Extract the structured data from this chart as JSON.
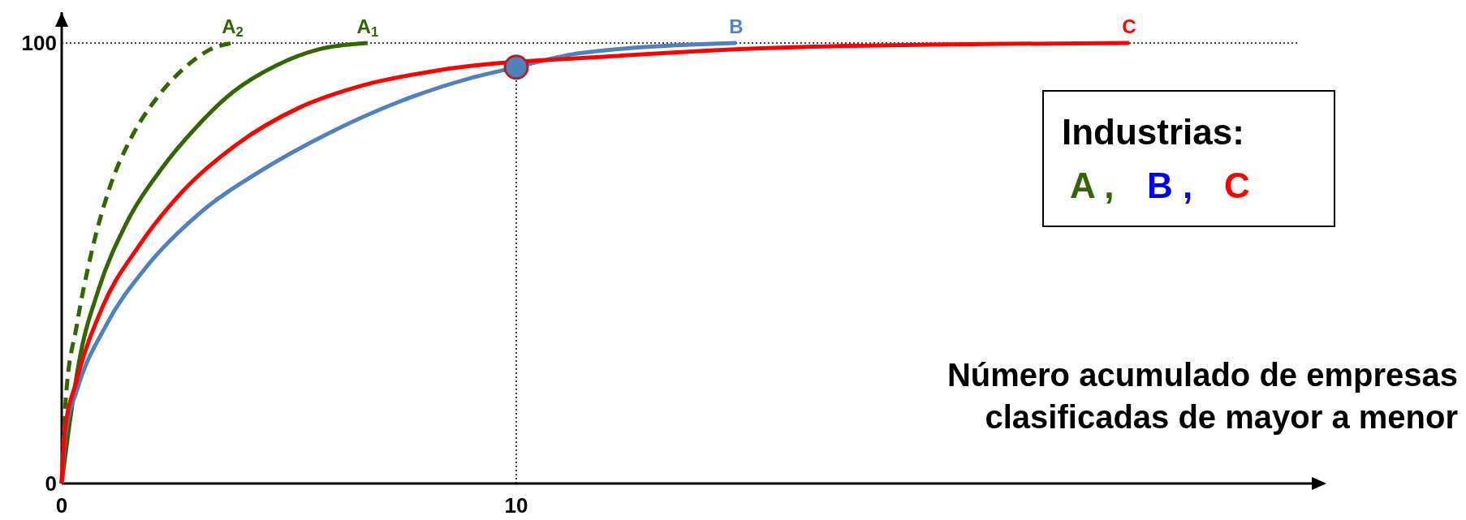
{
  "chart_data": {
    "type": "line",
    "xlabel": "Número acumulado de empresas\nclasificadas de mayor a menor",
    "xlim": [
      0,
      27.5
    ],
    "ylim": [
      0,
      107
    ],
    "xticks": [
      0,
      10
    ],
    "yticks": [
      0,
      100
    ],
    "series": [
      {
        "name": "A$_{2}$",
        "color": "#336600",
        "line_style": "dashed",
        "x": [
          0,
          0.09,
          0.33,
          0.65,
          1.05,
          1.53,
          2.09,
          2.73,
          3.28,
          3.76
        ],
        "values": [
          0,
          19.3,
          35.8,
          52.2,
          67,
          78.5,
          87.5,
          94.6,
          98.6,
          100
        ]
      },
      {
        "name": "A$_{1}$",
        "color": "#336600",
        "line_style": "solid",
        "x": [
          0,
          0.14,
          0.38,
          0.81,
          1.41,
          2.17,
          2.97,
          3.76,
          4.72,
          5.67,
          6.73
        ],
        "values": [
          0,
          11.1,
          27.5,
          44,
          58.8,
          71.1,
          81,
          88.8,
          94.9,
          98.6,
          100
        ]
      },
      {
        "name": "B",
        "color": "#4f81bd",
        "line_style": "solid",
        "x": [
          0,
          0.08,
          0.33,
          0.97,
          1.85,
          3.04,
          4.4,
          5.83,
          7.43,
          9.02,
          10,
          11.4,
          14.84
        ],
        "values": [
          0,
          11.1,
          21,
          35.8,
          49,
          61.4,
          71.1,
          79.3,
          86.7,
          92.1,
          94.5,
          97.7,
          100
        ]
      },
      {
        "name": "C",
        "color": "#ff0000",
        "line_style": "solid",
        "x": [
          0,
          0.06,
          0.33,
          0.89,
          1.69,
          2.65,
          3.84,
          5.2,
          6.63,
          8.23,
          10,
          12.12,
          16.24,
          23.48
        ],
        "values": [
          0,
          11.1,
          23.4,
          39.9,
          53.8,
          66.2,
          76.9,
          85.2,
          90.4,
          93.7,
          null,
          97,
          99.1,
          100
        ]
      },
      {
        "type": "scatter",
        "color": "#4f81bd",
        "marker": "circle",
        "x": [
          10
        ],
        "values": [
          94.5
        ]
      }
    ],
    "ref_lines": [
      {
        "axis": "y",
        "value": 100,
        "line_style": "dotted",
        "color": "#000000"
      },
      {
        "axis": "x",
        "value": 10,
        "line_style": "dotted",
        "color": "#000000"
      }
    ],
    "annotations": [
      "Industrias:",
      "A ,",
      "B ,",
      "C"
    ]
  }
}
